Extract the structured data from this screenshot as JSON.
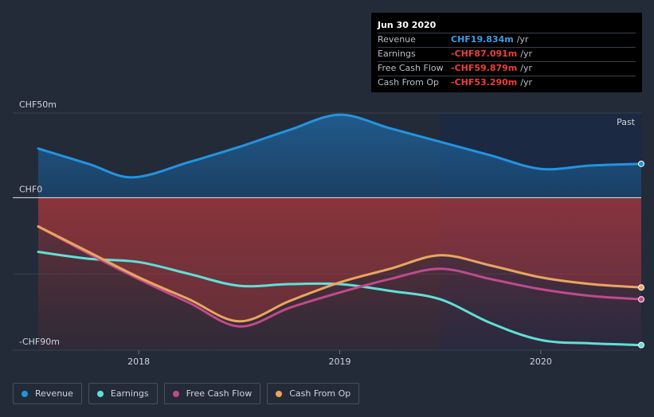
{
  "tooltip": {
    "date": "Jun 30 2020",
    "rows": [
      {
        "label": "Revenue",
        "value": "CHF19.834m",
        "unit": "/yr",
        "color": "#3b9ce8"
      },
      {
        "label": "Earnings",
        "value": "-CHF87.091m",
        "unit": "/yr",
        "color": "#f03e3e"
      },
      {
        "label": "Free Cash Flow",
        "value": "-CHF59.879m",
        "unit": "/yr",
        "color": "#f03e3e"
      },
      {
        "label": "Cash From Op",
        "value": "-CHF53.290m",
        "unit": "/yr",
        "color": "#f03e3e"
      }
    ]
  },
  "legend": [
    {
      "label": "Revenue",
      "color": "#2394df"
    },
    {
      "label": "Earnings",
      "color": "#5fe0d8"
    },
    {
      "label": "Free Cash Flow",
      "color": "#c04a8c"
    },
    {
      "label": "Cash From Op",
      "color": "#e8a65e"
    }
  ],
  "chart_data": {
    "type": "line",
    "title": "",
    "past_label": "Past",
    "y_ticks": [
      {
        "label": "CHF50m",
        "value": 50
      },
      {
        "label": "CHF0",
        "value": 0
      },
      {
        "label": "-CHF90m",
        "value": -90
      }
    ],
    "x_ticks": [
      {
        "label": "2018",
        "value": 2018.0
      },
      {
        "label": "2019",
        "value": 2019.0
      },
      {
        "label": "2020",
        "value": 2020.0
      }
    ],
    "xlim": [
      2017.5,
      2020.5
    ],
    "ylim": [
      -90,
      50
    ],
    "highlight_start": 2019.5,
    "series": [
      {
        "name": "Revenue",
        "color": "#2394df",
        "x": [
          2017.5,
          2017.75,
          2017.97,
          2018.25,
          2018.5,
          2018.75,
          2019.0,
          2019.25,
          2019.5,
          2019.75,
          2020.0,
          2020.25,
          2020.5
        ],
        "values": [
          29,
          20,
          12,
          21,
          30,
          40,
          49,
          41,
          33,
          25,
          17,
          19,
          20
        ]
      },
      {
        "name": "Earnings",
        "color": "#5fe0d8",
        "x": [
          2017.5,
          2017.75,
          2018.0,
          2018.25,
          2018.5,
          2018.75,
          2019.0,
          2019.25,
          2019.5,
          2019.75,
          2020.0,
          2020.25,
          2020.5
        ],
        "values": [
          -32,
          -36,
          -38,
          -45,
          -52,
          -51,
          -51,
          -55,
          -60,
          -74,
          -84,
          -86,
          -87
        ]
      },
      {
        "name": "Free Cash Flow",
        "color": "#c04a8c",
        "x": [
          2017.5,
          2017.75,
          2018.0,
          2018.25,
          2018.5,
          2018.75,
          2019.0,
          2019.25,
          2019.5,
          2019.75,
          2020.0,
          2020.25,
          2020.5
        ],
        "values": [
          -17,
          -33,
          -48,
          -62,
          -76,
          -65,
          -56,
          -48,
          -42,
          -48,
          -54,
          -58,
          -60
        ]
      },
      {
        "name": "Cash From Op",
        "color": "#e8a65e",
        "x": [
          2017.5,
          2017.75,
          2018.0,
          2018.25,
          2018.5,
          2018.75,
          2019.0,
          2019.25,
          2019.5,
          2019.75,
          2020.0,
          2020.25,
          2020.5
        ],
        "values": [
          -17,
          -32,
          -47,
          -60,
          -73,
          -61,
          -50,
          -42,
          -34,
          -40,
          -47,
          -51,
          -53
        ]
      }
    ]
  }
}
